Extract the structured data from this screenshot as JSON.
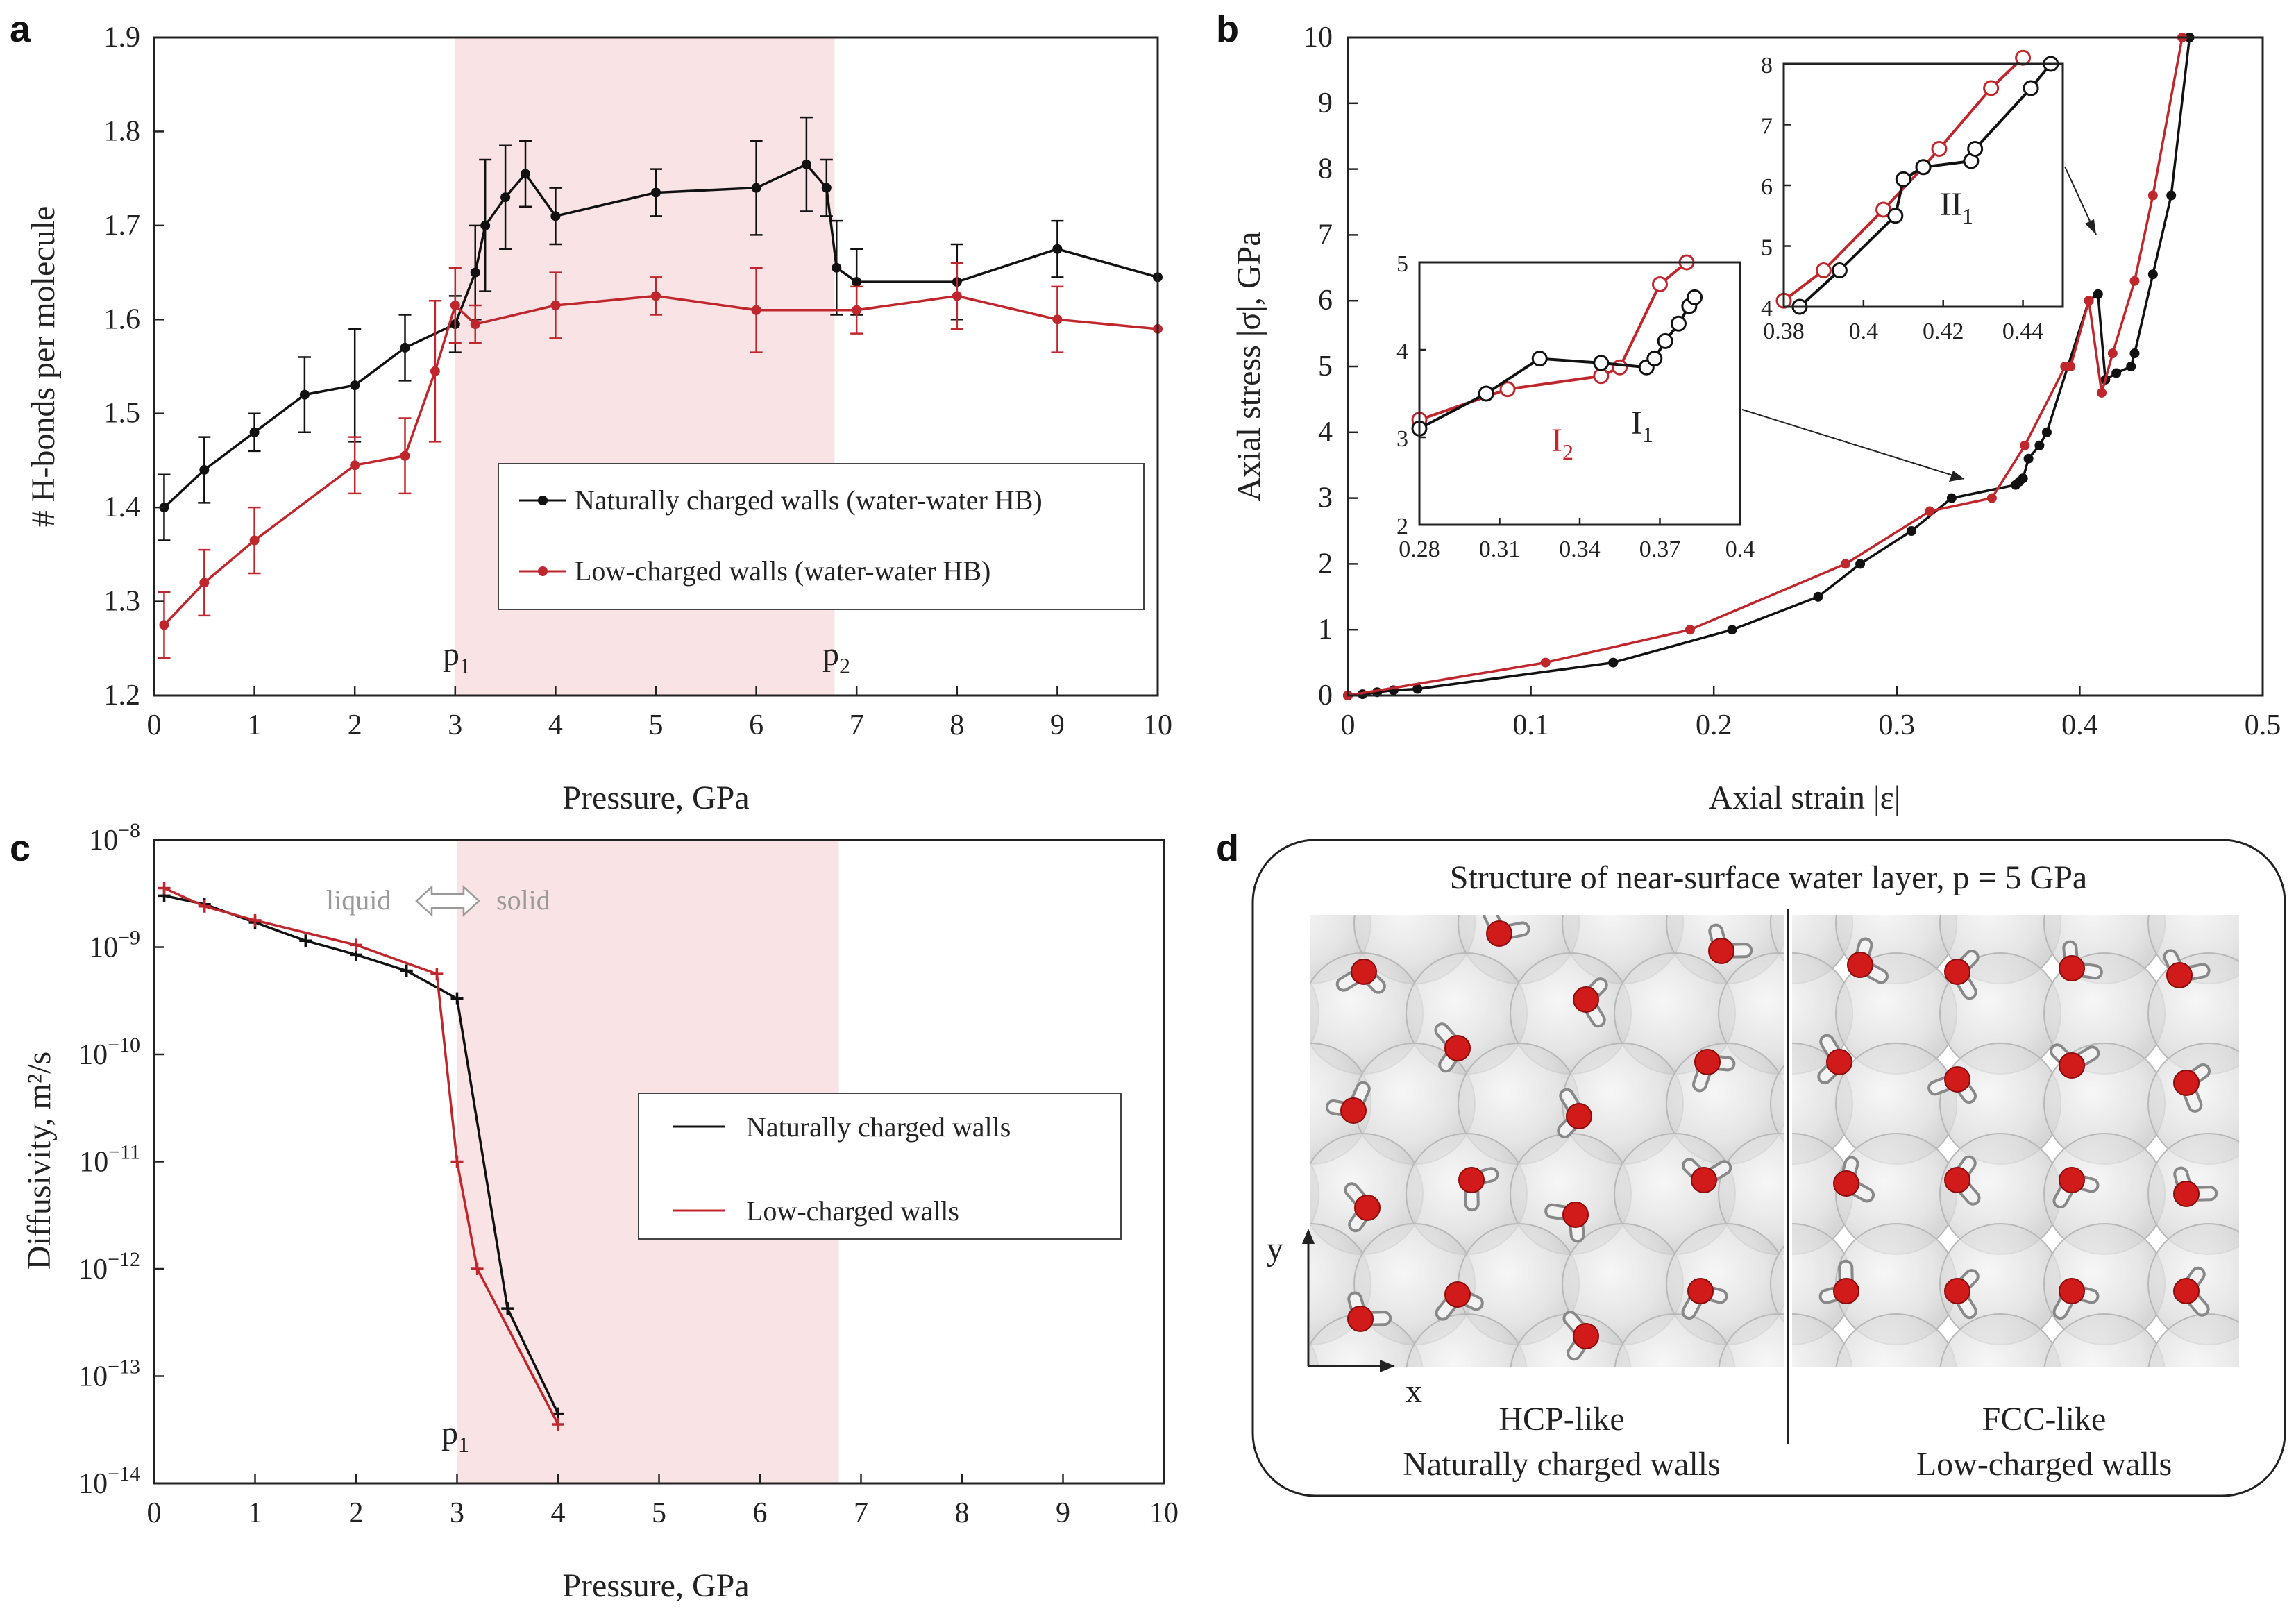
{
  "colors": {
    "black": "#111111",
    "red": "#c0272d",
    "shade": "#f9e3e4",
    "grey": "#999999"
  },
  "chart_data": [
    {
      "panel": "a",
      "type": "line",
      "xlabel": "Pressure, GPa",
      "ylabel": "# H-bonds per molecule",
      "xlim": [
        0,
        10
      ],
      "ylim": [
        1.2,
        1.9
      ],
      "xticks": [
        "0",
        "1",
        "2",
        "3",
        "4",
        "5",
        "6",
        "7",
        "8",
        "9",
        "10"
      ],
      "yticks": [
        "1.2",
        "1.3",
        "1.4",
        "1.5",
        "1.6",
        "1.7",
        "1.8",
        "1.9"
      ],
      "shaded_region": [
        3,
        6.78
      ],
      "annotations": [
        "p1",
        "p2"
      ],
      "series": [
        {
          "name": "Naturally charged walls (water-water HB)",
          "x": [
            0.1,
            0.5,
            1,
            1.5,
            2,
            2.5,
            3,
            3.2,
            3.3,
            3.5,
            3.7,
            4,
            5,
            6,
            6.5,
            6.7,
            6.8,
            7,
            8,
            9,
            10
          ],
          "y": [
            1.4,
            1.44,
            1.48,
            1.52,
            1.53,
            1.57,
            1.595,
            1.65,
            1.7,
            1.73,
            1.755,
            1.71,
            1.735,
            1.74,
            1.765,
            1.74,
            1.655,
            1.64,
            1.64,
            1.675,
            1.645
          ],
          "err": [
            0.035,
            0.035,
            0.02,
            0.04,
            0.06,
            0.035,
            0.03,
            0.05,
            0.07,
            0.055,
            0.035,
            0.03,
            0.025,
            0.05,
            0.05,
            0.03,
            0.05,
            0.035,
            0.04,
            0.03,
            0
          ]
        },
        {
          "name": "Low-charged walls (water-water HB)",
          "x": [
            0.1,
            0.5,
            1,
            2,
            2.5,
            2.8,
            3,
            3.2,
            4,
            5,
            6,
            7,
            8,
            9,
            10
          ],
          "y": [
            1.275,
            1.32,
            1.365,
            1.445,
            1.455,
            1.545,
            1.615,
            1.595,
            1.615,
            1.625,
            1.61,
            1.61,
            1.625,
            1.6,
            1.59
          ],
          "err": [
            0.035,
            0.035,
            0.035,
            0.03,
            0.04,
            0.075,
            0.04,
            0.02,
            0.035,
            0.02,
            0.045,
            0.025,
            0.035,
            0.035,
            0
          ]
        }
      ]
    },
    {
      "panel": "b",
      "type": "line",
      "xlabel": "Axial strain |ε|",
      "ylabel": "Axial stress |σ|, GPa",
      "xlim": [
        0,
        0.5
      ],
      "ylim": [
        0,
        10
      ],
      "xticks": [
        "0",
        "0.1",
        "0.2",
        "0.3",
        "0.4",
        "0.5"
      ],
      "yticks": [
        "0",
        "1",
        "2",
        "3",
        "4",
        "5",
        "6",
        "7",
        "8",
        "9",
        "10"
      ],
      "series": [
        {
          "name": "Naturally charged walls",
          "x": [
            0,
            0.008,
            0.016,
            0.025,
            0.038,
            0.145,
            0.21,
            0.257,
            0.28,
            0.308,
            0.33,
            0.365,
            0.367,
            0.369,
            0.372,
            0.378,
            0.382,
            0.405,
            0.41,
            0.414,
            0.42,
            0.428,
            0.43,
            0.44,
            0.45,
            0.46
          ],
          "y": [
            0,
            0.02,
            0.05,
            0.08,
            0.1,
            0.5,
            1,
            1.5,
            2,
            2.5,
            3,
            3.2,
            3.25,
            3.3,
            3.6,
            3.8,
            4,
            6,
            6.1,
            4.8,
            4.9,
            5,
            5.2,
            6.4,
            7.6,
            10
          ]
        },
        {
          "name": "Low-charged walls",
          "x": [
            0,
            0.108,
            0.187,
            0.272,
            0.318,
            0.352,
            0.37,
            0.392,
            0.395,
            0.405,
            0.412,
            0.418,
            0.43,
            0.44,
            0.456
          ],
          "y": [
            0,
            0.5,
            1,
            2,
            2.8,
            3,
            3.8,
            5,
            5,
            6,
            4.6,
            5.2,
            6.3,
            7.6,
            10
          ]
        }
      ],
      "insets": [
        {
          "label": "I",
          "sub": "1",
          "label2": "I",
          "sub2": "2",
          "xlim": [
            0.28,
            0.4
          ],
          "ylim": [
            2,
            5
          ],
          "xticks": [
            "0.28",
            "0.31",
            "0.34",
            "0.37",
            "0.4"
          ],
          "yticks": [
            "2",
            "3",
            "4",
            "5"
          ],
          "black": {
            "x": [
              0.28,
              0.305,
              0.325,
              0.348,
              0.365,
              0.368,
              0.372,
              0.377,
              0.381,
              0.383
            ],
            "y": [
              3.1,
              3.5,
              3.9,
              3.85,
              3.8,
              3.9,
              4.1,
              4.3,
              4.5,
              4.6
            ]
          },
          "red": {
            "x": [
              0.28,
              0.313,
              0.348,
              0.355,
              0.37,
              0.38
            ],
            "y": [
              3.2,
              3.55,
              3.7,
              3.8,
              4.75,
              5
            ]
          }
        },
        {
          "label": "II",
          "sub": "1",
          "xlim": [
            0.38,
            0.45
          ],
          "ylim": [
            4,
            8
          ],
          "xticks": [
            "0.38",
            "0.4",
            "0.42",
            "0.44"
          ],
          "yticks": [
            "4",
            "5",
            "6",
            "7",
            "8"
          ],
          "black": {
            "x": [
              0.384,
              0.394,
              0.408,
              0.41,
              0.415,
              0.427,
              0.428,
              0.442,
              0.447
            ],
            "y": [
              4,
              4.6,
              5.5,
              6.1,
              6.3,
              6.4,
              6.6,
              7.6,
              8
            ]
          },
          "red": {
            "x": [
              0.38,
              0.39,
              0.405,
              0.415,
              0.419,
              0.432,
              0.44
            ],
            "y": [
              4.1,
              4.6,
              5.6,
              6.3,
              6.6,
              7.6,
              8.1
            ]
          }
        }
      ]
    },
    {
      "panel": "c",
      "type": "line",
      "xlabel": "Pressure, GPa",
      "ylabel": "Diffusivity, m²/s",
      "xlim": [
        0,
        10
      ],
      "ylim_log10": [
        -14,
        -8
      ],
      "xticks": [
        "0",
        "1",
        "2",
        "3",
        "4",
        "5",
        "6",
        "7",
        "8",
        "9",
        "10"
      ],
      "ytick_exps": [
        "−8",
        "−9",
        "−10",
        "−11",
        "−12",
        "−13",
        "−14"
      ],
      "shaded_region": [
        3,
        6.78
      ],
      "annotations": [
        "liquid",
        "solid",
        "p1"
      ],
      "series": [
        {
          "name": "Naturally charged walls",
          "x": [
            0.1,
            0.5,
            1,
            1.5,
            2,
            2.5,
            3,
            3.5,
            4
          ],
          "log10_y": [
            -8.52,
            -8.6,
            -8.77,
            -8.94,
            -9.07,
            -9.22,
            -9.48,
            -12.37,
            -13.35
          ]
        },
        {
          "name": "Low-charged walls",
          "x": [
            0.1,
            0.5,
            1,
            2,
            2.8,
            3,
            3.2,
            4
          ],
          "log10_y": [
            -8.45,
            -8.62,
            -8.75,
            -8.98,
            -9.25,
            -11.0,
            -12.0,
            -13.45
          ]
        }
      ]
    }
  ],
  "panel_d": {
    "title": "Structure of near-surface water layer, p = 5 GPa",
    "left_caption_1": "HCP-like",
    "left_caption_2": "Naturally charged walls",
    "right_caption_1": "FCC-like",
    "right_caption_2": "Low-charged walls",
    "axis_y": "y",
    "axis_x": "x"
  },
  "labels": {
    "a": "a",
    "b": "b",
    "c": "c",
    "d": "d",
    "p": "p",
    "one": "1",
    "two": "2",
    "liquid": "liquid",
    "solid": "solid",
    "ten": "10"
  }
}
